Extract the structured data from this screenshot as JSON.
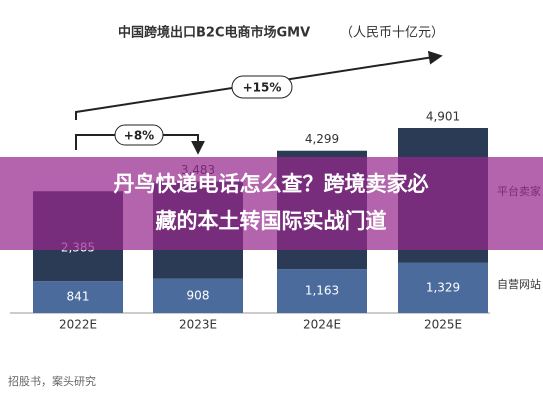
{
  "chart_data": {
    "type": "stacked-bar",
    "title": "中国跨境出口B2C电商市场GMV",
    "subtitle": "（人民币十亿元）",
    "categories": [
      "2022E",
      "2023E",
      "2024E",
      "2025E"
    ],
    "series": [
      {
        "name": "自营网站",
        "color": "#4a6b9c",
        "values": [
          841,
          908,
          1163,
          1329
        ],
        "value_labels": [
          "841",
          "908",
          "1,163",
          "1,329"
        ]
      },
      {
        "name": "平台卖家",
        "color": "#2b3a55",
        "values": [
          2385,
          2575,
          3136,
          3572
        ],
        "value_labels": [
          "2,385",
          null,
          null,
          null
        ]
      }
    ],
    "totals": [
      null,
      3483,
      4299,
      4901
    ],
    "total_labels": [
      null,
      "3,483",
      "4,299",
      "4,901"
    ],
    "annotations": [
      "+15%",
      "+8%"
    ],
    "source": "招股书，案头研究",
    "banner": [
      "丹鸟快递电话怎么查？跨境卖家必",
      "藏的本土转国际实战门道"
    ]
  }
}
